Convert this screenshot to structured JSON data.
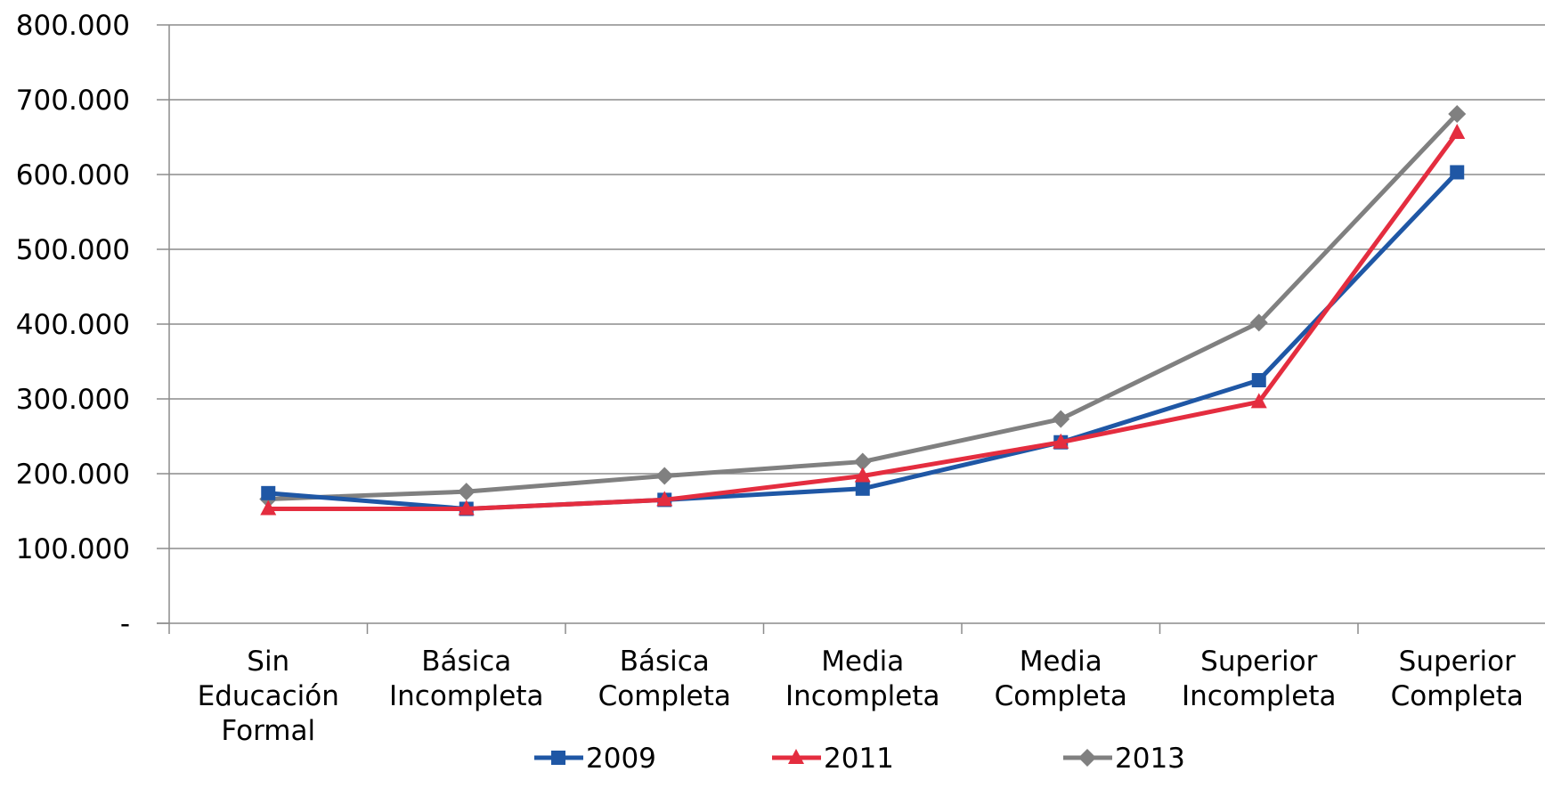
{
  "chart_data": {
    "type": "line",
    "categories": [
      [
        "Sin",
        "Educación",
        "Formal"
      ],
      [
        "Básica",
        "Incompleta"
      ],
      [
        "Básica",
        "Completa"
      ],
      [
        "Media",
        "Incompleta"
      ],
      [
        "Media",
        "Completa"
      ],
      [
        "Superior",
        "Incompleta"
      ],
      [
        "Superior",
        "Completa"
      ]
    ],
    "series": [
      {
        "name": "2009",
        "color": "#1f57a5",
        "marker": "square",
        "values": [
          174000,
          153000,
          165000,
          180000,
          242000,
          325000,
          603000
        ]
      },
      {
        "name": "2011",
        "color": "#e42d3f",
        "marker": "triangle",
        "values": [
          153000,
          153000,
          165000,
          197000,
          242000,
          296000,
          656000
        ]
      },
      {
        "name": "2013",
        "color": "#808080",
        "marker": "diamond",
        "values": [
          166000,
          176000,
          197000,
          216000,
          273000,
          402000,
          681000
        ]
      }
    ],
    "ylim": [
      0,
      800000
    ],
    "yticks": [
      "-",
      "100.000",
      "200.000",
      "300.000",
      "400.000",
      "500.000",
      "600.000",
      "700.000",
      "800.000"
    ],
    "grid": true,
    "legend_position": "bottom"
  }
}
